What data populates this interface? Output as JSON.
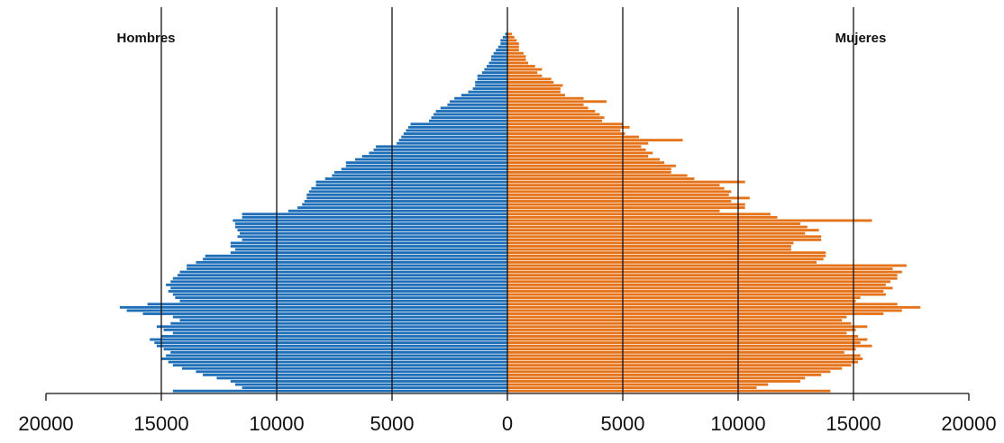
{
  "chart_data": {
    "type": "bar",
    "orientation": "horizontal",
    "title": "",
    "xlabel": "",
    "ylabel": "",
    "xlim": [
      -20000,
      20000
    ],
    "x_tick_values": [
      -20000,
      -15000,
      -10000,
      -5000,
      0,
      5000,
      10000,
      15000,
      20000
    ],
    "x_tick_labels": [
      "20000",
      "15000",
      "10000",
      "5000",
      "0",
      "5000",
      "10000",
      "15000",
      "20000"
    ],
    "vertical_gridlines": [
      -15000,
      -10000,
      -5000,
      0,
      5000,
      10000,
      15000
    ],
    "legend": "none",
    "side_labels": {
      "left": "Hombres",
      "right": "Mujeres"
    },
    "series": [
      {
        "name": "Hombres",
        "color": "#1f6fb8",
        "values": [
          14500,
          11500,
          11800,
          12000,
          12600,
          13200,
          13500,
          14100,
          14500,
          14700,
          15000,
          14800,
          14600,
          14900,
          15200,
          15300,
          15500,
          15000,
          14500,
          14900,
          15200,
          14600,
          14200,
          14500,
          15800,
          16500,
          16800,
          15600,
          14200,
          14400,
          14500,
          14700,
          14600,
          14800,
          14600,
          14500,
          14300,
          14200,
          13900,
          13900,
          13500,
          13200,
          13100,
          12000,
          11800,
          12000,
          12000,
          11500,
          11700,
          11600,
          11700,
          11800,
          11800,
          11900,
          11500,
          11500,
          9500,
          9100,
          8900,
          8800,
          8700,
          8700,
          8600,
          8500,
          8300,
          8300,
          7900,
          7600,
          7500,
          7200,
          7000,
          7000,
          6600,
          6300,
          6000,
          5800,
          5700,
          4800,
          4700,
          4600,
          4500,
          4400,
          4300,
          4200,
          3400,
          3300,
          3200,
          3100,
          2900,
          2600,
          2500,
          2300,
          2000,
          1700,
          1500,
          1400,
          1400,
          1300,
          1300,
          1100,
          1000,
          900,
          800,
          700,
          700,
          600,
          500,
          400,
          300,
          300,
          200,
          100
        ]
      },
      {
        "name": "Mujeres",
        "color": "#e5731a",
        "values": [
          14000,
          10800,
          11300,
          12700,
          12900,
          13600,
          14000,
          14500,
          14900,
          15200,
          15400,
          15300,
          14600,
          15100,
          15800,
          15300,
          15600,
          15200,
          14700,
          15100,
          15600,
          14900,
          14500,
          14700,
          16300,
          17100,
          17900,
          16900,
          15100,
          15300,
          16400,
          16300,
          16700,
          16400,
          16600,
          16900,
          16900,
          17100,
          16700,
          17300,
          13400,
          13700,
          13800,
          13800,
          12300,
          12300,
          12400,
          13600,
          13600,
          12900,
          13500,
          13000,
          12700,
          15800,
          11700,
          11400,
          9200,
          10300,
          10300,
          9700,
          10500,
          9600,
          9700,
          9400,
          9200,
          10300,
          8100,
          7800,
          7100,
          7100,
          7300,
          6800,
          6600,
          6100,
          6300,
          6000,
          5800,
          6100,
          7600,
          5700,
          5100,
          4900,
          5300,
          5000,
          4100,
          4200,
          4000,
          3800,
          3500,
          3300,
          4300,
          3300,
          2500,
          2300,
          2300,
          2400,
          2000,
          1900,
          1500,
          1300,
          1500,
          1200,
          900,
          800,
          800,
          700,
          500,
          500,
          500,
          400,
          300,
          200
        ]
      }
    ]
  }
}
